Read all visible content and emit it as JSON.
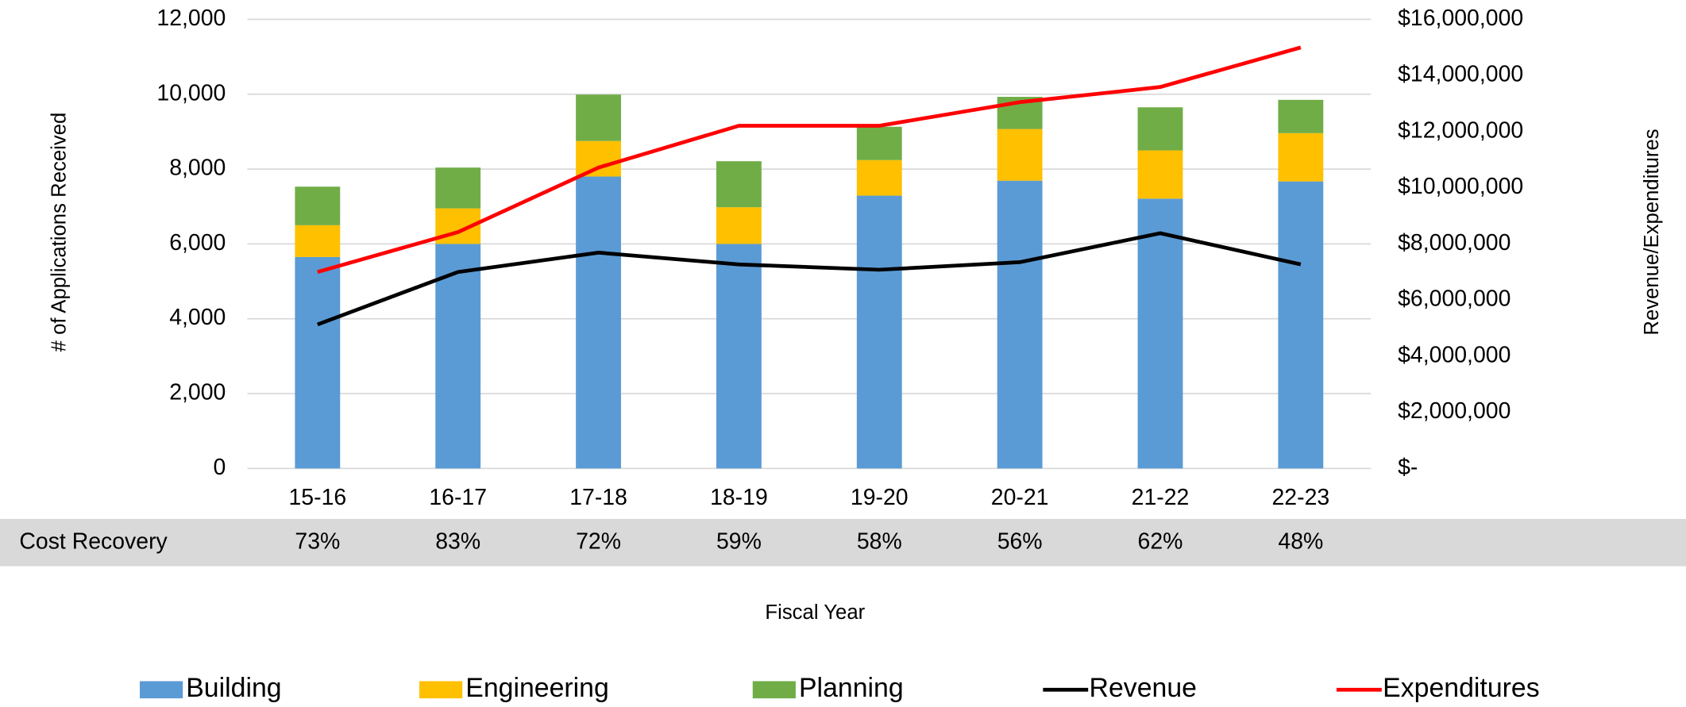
{
  "chart_data": {
    "type": "bar",
    "categories": [
      "15-16",
      "16-17",
      "17-18",
      "18-19",
      "19-20",
      "20-21",
      "21-22",
      "22-23"
    ],
    "series": [
      {
        "name": "Building",
        "color": "#5b9bd5",
        "values": [
          5650,
          6000,
          7800,
          6000,
          7290,
          7690,
          7210,
          7670
        ]
      },
      {
        "name": "Engineering",
        "color": "#ffc000",
        "values": [
          850,
          950,
          950,
          980,
          950,
          1380,
          1290,
          1290
        ]
      },
      {
        "name": "Planning",
        "color": "#70ad47",
        "values": [
          1030,
          1090,
          1240,
          1230,
          890,
          860,
          1150,
          890
        ]
      },
      {
        "name": "Revenue",
        "color": "#000000",
        "type": "line",
        "axis": "y2",
        "values": [
          5130000,
          7000000,
          7690000,
          7270000,
          7080000,
          7350000,
          8380000,
          7270000
        ]
      },
      {
        "name": "Expenditures",
        "color": "#ff0000",
        "type": "line",
        "axis": "y2",
        "values": [
          7000000,
          8420000,
          10720000,
          12210000,
          12210000,
          13050000,
          13590000,
          15000000
        ]
      }
    ],
    "stacked": true,
    "ylabel": "# of Applications Received",
    "y2label": "Revenue/Expenditures",
    "xlabel": "Fiscal Year",
    "ylim": [
      0,
      12000
    ],
    "yticks": [
      0,
      {
        "value": 2000,
        "label": "2,000"
      },
      {
        "value": 4000,
        "label": "4,000"
      },
      {
        "value": 6000,
        "label": "6,000"
      },
      {
        "value": 8000,
        "label": "8,000"
      },
      {
        "value": 10000,
        "label": "10,000"
      },
      {
        "value": 12000,
        "label": "12,000"
      }
    ],
    "y2lim": [
      0,
      16000000
    ],
    "y2ticks": [
      {
        "value": 0,
        "label": "$-"
      },
      {
        "value": 2000000,
        "label": "$2,000,000"
      },
      {
        "value": 4000000,
        "label": "$4,000,000"
      },
      {
        "value": 6000000,
        "label": "$6,000,000"
      },
      {
        "value": 8000000,
        "label": "$8,000,000"
      },
      {
        "value": 10000000,
        "label": "$10,000,000"
      },
      {
        "value": 12000000,
        "label": "$12,000,000"
      },
      {
        "value": 14000000,
        "label": "$14,000,000"
      },
      {
        "value": 16000000,
        "label": "$16,000,000"
      }
    ],
    "grid": true,
    "cost_recovery": {
      "label": "Cost Recovery",
      "values": [
        "73%",
        "83%",
        "72%",
        "59%",
        "58%",
        "56%",
        "62%",
        "48%"
      ]
    }
  }
}
